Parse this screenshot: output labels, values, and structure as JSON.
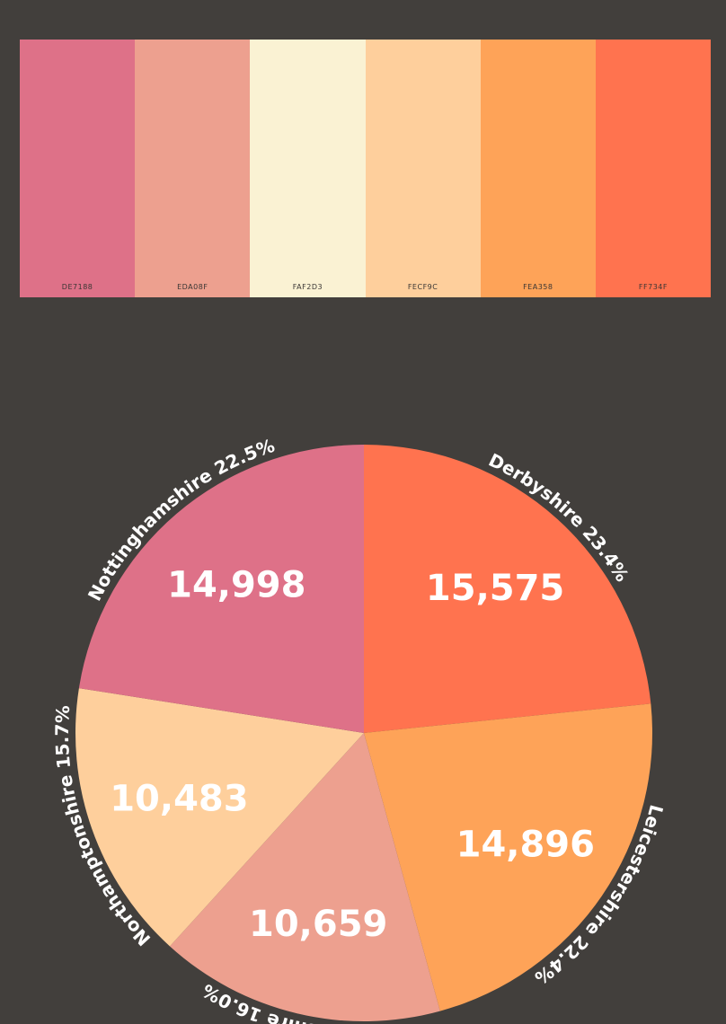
{
  "palette": [
    {
      "hex": "#DE7188",
      "code": "DE7188"
    },
    {
      "hex": "#EDA08F",
      "code": "EDA08F"
    },
    {
      "hex": "#FAF2D3",
      "code": "FAF2D3"
    },
    {
      "hex": "#FECF9C",
      "code": "FECF9C"
    },
    {
      "hex": "#FEA358",
      "code": "FEA358"
    },
    {
      "hex": "#FF734F",
      "code": "FF734F"
    }
  ],
  "chart_data": {
    "type": "pie",
    "title": "",
    "start": "12 o'clock",
    "direction": "clockwise",
    "slices": [
      {
        "label": "Derbyshire",
        "value": 15575,
        "value_text": "15,575",
        "percent_text": "23.4%",
        "color": "#FF734F"
      },
      {
        "label": "Leicestershire",
        "value": 14896,
        "value_text": "14,896",
        "percent_text": "22.4%",
        "color": "#FEA358"
      },
      {
        "label": "Lincolnshire",
        "value": 10659,
        "value_text": "10,659",
        "percent_text": "16.0%",
        "color": "#EDA08F"
      },
      {
        "label": "Northamptonshire",
        "value": 10483,
        "value_text": "10,483",
        "percent_text": "15.7%",
        "color": "#FECF9C"
      },
      {
        "label": "Nottinghamshire",
        "value": 14998,
        "value_text": "14,998",
        "percent_text": "22.5%",
        "color": "#DE7188"
      }
    ]
  }
}
